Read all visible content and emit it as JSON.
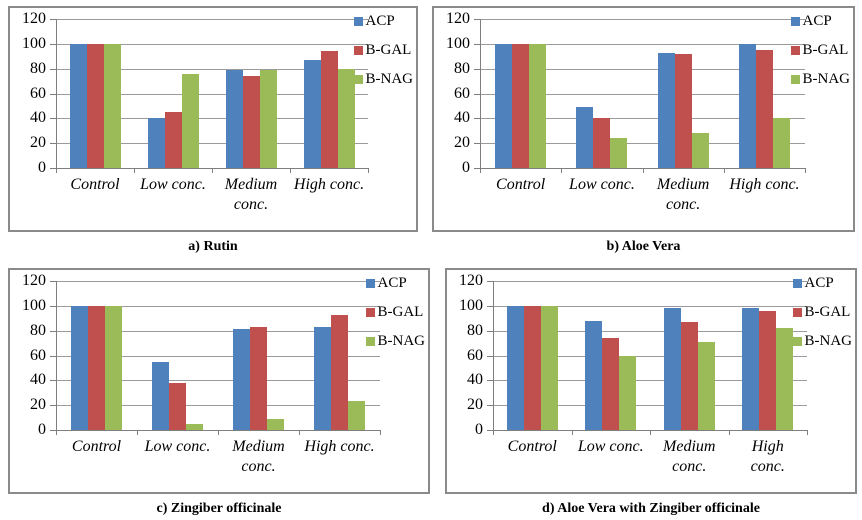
{
  "page": {
    "background": "#ffffff"
  },
  "colors": {
    "acp": "#4F81BD",
    "b_gal": "#C0504D",
    "b_nag": "#9BBB59",
    "gridline": "#9b9b9b",
    "axis": "#7f7f7f",
    "panel_border": "#8a8a8a",
    "text": "#000000"
  },
  "y_axis": {
    "ticks": [
      120,
      100,
      80,
      60,
      40,
      20,
      0
    ]
  },
  "chart_data": [
    {
      "id": "a",
      "type": "bar",
      "title": "a) Rutin",
      "categories": [
        "Control",
        "Low conc.",
        "Medium\nconc.",
        "High conc."
      ],
      "series": [
        {
          "name": "ACP",
          "color": "#4F81BD",
          "values": [
            100,
            40,
            79,
            87
          ]
        },
        {
          "name": "B-GAL",
          "color": "#C0504D",
          "values": [
            100,
            45,
            74,
            94
          ]
        },
        {
          "name": "B-NAG",
          "color": "#9BBB59",
          "values": [
            100,
            76,
            79,
            80
          ]
        }
      ],
      "ylim": [
        0,
        120
      ],
      "ytick_step": 20,
      "grid": true,
      "legend_position": "top-right",
      "xlabel": "",
      "ylabel": ""
    },
    {
      "id": "b",
      "type": "bar",
      "title": "b) Aloe Vera",
      "categories": [
        "Control",
        "Low conc.",
        "Medium\nconc.",
        "High conc."
      ],
      "series": [
        {
          "name": "ACP",
          "color": "#4F81BD",
          "values": [
            100,
            49,
            93,
            100
          ]
        },
        {
          "name": "B-GAL",
          "color": "#C0504D",
          "values": [
            100,
            40,
            92,
            95
          ]
        },
        {
          "name": "B-NAG",
          "color": "#9BBB59",
          "values": [
            100,
            24,
            28,
            40
          ]
        }
      ],
      "ylim": [
        0,
        120
      ],
      "ytick_step": 20,
      "grid": true,
      "legend_position": "top-right",
      "xlabel": "",
      "ylabel": ""
    },
    {
      "id": "c",
      "type": "bar",
      "title": "c) Zingiber officinale",
      "categories": [
        "Control",
        "Low conc.",
        "Medium\nconc.",
        "High conc."
      ],
      "series": [
        {
          "name": "ACP",
          "color": "#4F81BD",
          "values": [
            100,
            55,
            81,
            83
          ]
        },
        {
          "name": "B-GAL",
          "color": "#C0504D",
          "values": [
            100,
            38,
            83,
            93
          ]
        },
        {
          "name": "B-NAG",
          "color": "#9BBB59",
          "values": [
            100,
            5,
            9,
            23
          ]
        }
      ],
      "ylim": [
        0,
        120
      ],
      "ytick_step": 20,
      "grid": true,
      "legend_position": "top-right",
      "xlabel": "",
      "ylabel": ""
    },
    {
      "id": "d",
      "type": "bar",
      "title": "d) Aloe Vera with Zingiber officinale",
      "categories": [
        "Control",
        "Low conc.",
        "Medium\nconc.",
        "High\nconc."
      ],
      "series": [
        {
          "name": "ACP",
          "color": "#4F81BD",
          "values": [
            100,
            88,
            98,
            98
          ]
        },
        {
          "name": "B-GAL",
          "color": "#C0504D",
          "values": [
            100,
            74,
            87,
            96
          ]
        },
        {
          "name": "B-NAG",
          "color": "#9BBB59",
          "values": [
            100,
            60,
            71,
            82
          ]
        }
      ],
      "ylim": [
        0,
        120
      ],
      "ytick_step": 20,
      "grid": true,
      "legend_position": "top-right",
      "xlabel": "",
      "ylabel": ""
    }
  ]
}
